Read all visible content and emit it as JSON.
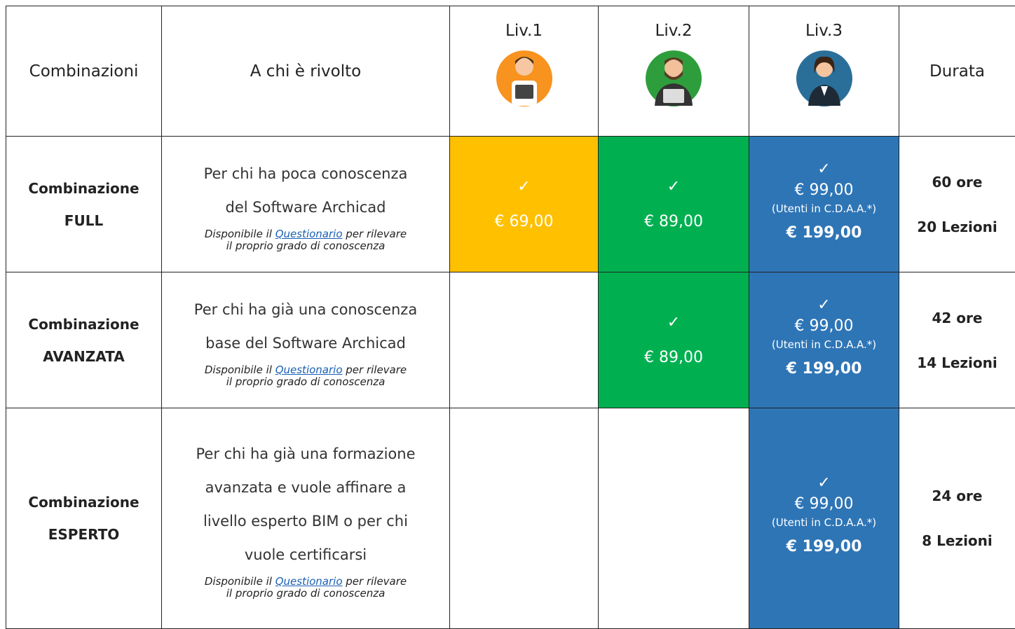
{
  "table": {
    "header": [
      "Combinazioni",
      "A chi è rivolto",
      "Liv.1",
      "Liv.2",
      "Liv.3",
      "Durata"
    ],
    "level_colors": [
      "#ffc000",
      "#00b050",
      "#2e75b6"
    ],
    "rows": [
      {
        "name": [
          "Combinazione",
          "FULL"
        ],
        "description": [
          "Per chi ha poca conoscenza",
          "del Software Archicad"
        ],
        "note": [
          "Disponibile il ",
          "Questionario",
          " per rilevare",
          "il proprio grado di conoscenza"
        ],
        "levels": [
          {
            "check": "✓",
            "price": "€ 69,00"
          },
          {
            "check": "✓",
            "price": "€ 89,00"
          },
          {
            "check": "✓",
            "price": "€ 99,00",
            "sub": "(Utenti in C.D.A.A.*)",
            "price2": "€ 199,00"
          }
        ],
        "duration": [
          "60 ore",
          "20 Lezioni"
        ]
      },
      {
        "name": [
          "Combinazione",
          "AVANZATA"
        ],
        "description": [
          "Per chi ha già una conoscenza",
          "base del Software Archicad"
        ],
        "note": [
          "Disponibile il ",
          "Questionario",
          " per rilevare",
          "il proprio grado di conoscenza"
        ],
        "levels": [
          null,
          {
            "check": "✓",
            "price": "€ 89,00"
          },
          {
            "check": "✓",
            "price": "€ 99,00",
            "sub": "(Utenti in C.D.A.A.*)",
            "price2": "€ 199,00"
          }
        ],
        "duration": [
          "42 ore",
          "14 Lezioni"
        ]
      },
      {
        "name": [
          "Combinazione",
          "ESPERTO"
        ],
        "description": [
          "Per chi ha già una formazione",
          "avanzata e vuole affinare a",
          "livello esperto BIM o per chi",
          "vuole certificarsi"
        ],
        "note": [
          "Disponibile il ",
          "Questionario",
          " per rilevare",
          "il proprio grado di conoscenza"
        ],
        "levels": [
          null,
          null,
          {
            "check": "✓",
            "price": "€ 99,00",
            "sub": "(Utenti in C.D.A.A.*)",
            "price2": "€ 199,00"
          }
        ],
        "duration": [
          "24 ore",
          "8 Lezioni"
        ]
      }
    ]
  }
}
